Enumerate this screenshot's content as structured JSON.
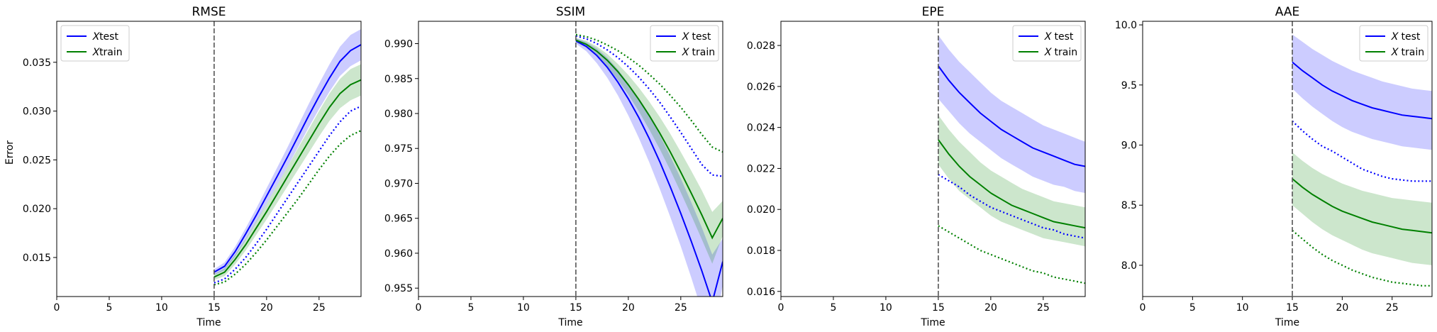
{
  "figure": {
    "ylabel": "Error",
    "xlabel": "Time"
  },
  "colors": {
    "test": "#0000ff",
    "train": "#008000",
    "test_band": "#0000ff",
    "train_band": "#008000",
    "vline": "#555555"
  },
  "chart_data": [
    {
      "type": "line",
      "title": "RMSE",
      "xlabel": "Time",
      "ylabel": "Error",
      "xlim": [
        0,
        29
      ],
      "ylim": [
        0.011,
        0.0392
      ],
      "xticks": [
        0,
        5,
        10,
        15,
        20,
        25
      ],
      "yticks": [
        0.015,
        0.02,
        0.025,
        0.03,
        0.035
      ],
      "ytick_labels": [
        "0.015",
        "0.020",
        "0.025",
        "0.030",
        "0.035"
      ],
      "vline_x": 15,
      "legend": {
        "position": "top-left",
        "entries": [
          "$X$test",
          "$X$train"
        ],
        "labels": [
          "𝑋test",
          "𝑋train"
        ]
      },
      "x": [
        15,
        16,
        17,
        18,
        19,
        20,
        21,
        22,
        23,
        24,
        25,
        26,
        27,
        28,
        29
      ],
      "series": [
        {
          "name": "𝑋test",
          "color_key": "test",
          "style": "solid",
          "values": [
            0.0135,
            0.0141,
            0.0156,
            0.0174,
            0.0193,
            0.0213,
            0.0233,
            0.0253,
            0.0274,
            0.0295,
            0.0315,
            0.0334,
            0.0351,
            0.0362,
            0.0368
          ],
          "lower": [
            0.0132,
            0.0137,
            0.0151,
            0.0168,
            0.0186,
            0.0205,
            0.0224,
            0.0243,
            0.0263,
            0.0283,
            0.0302,
            0.032,
            0.0336,
            0.0346,
            0.0352
          ],
          "upper": [
            0.0138,
            0.0145,
            0.0161,
            0.018,
            0.02,
            0.0221,
            0.0242,
            0.0263,
            0.0285,
            0.0307,
            0.0328,
            0.0348,
            0.0366,
            0.0378,
            0.0384
          ]
        },
        {
          "name": "𝑋train",
          "color_key": "train",
          "style": "solid",
          "values": [
            0.013,
            0.0135,
            0.0148,
            0.0163,
            0.018,
            0.0197,
            0.0215,
            0.0233,
            0.0251,
            0.0269,
            0.0287,
            0.0304,
            0.0318,
            0.0327,
            0.0332
          ],
          "lower": [
            0.0127,
            0.0131,
            0.0143,
            0.0157,
            0.0173,
            0.0189,
            0.0206,
            0.0223,
            0.024,
            0.0257,
            0.0274,
            0.029,
            0.0303,
            0.0311,
            0.0316
          ],
          "upper": [
            0.0133,
            0.0139,
            0.0153,
            0.0169,
            0.0187,
            0.0205,
            0.0224,
            0.0243,
            0.0262,
            0.0281,
            0.03,
            0.0318,
            0.0333,
            0.0343,
            0.0348
          ]
        },
        {
          "name": "",
          "color_key": "test",
          "style": "dotted",
          "values": [
            0.0124,
            0.0128,
            0.0138,
            0.015,
            0.0164,
            0.0179,
            0.0195,
            0.0211,
            0.0227,
            0.0243,
            0.0259,
            0.0275,
            0.0289,
            0.03,
            0.0305
          ]
        },
        {
          "name": "",
          "color_key": "train",
          "style": "dotted",
          "values": [
            0.0122,
            0.0125,
            0.0133,
            0.0143,
            0.0155,
            0.0168,
            0.0182,
            0.0196,
            0.021,
            0.0225,
            0.024,
            0.0254,
            0.0266,
            0.0275,
            0.028
          ]
        }
      ]
    },
    {
      "type": "line",
      "title": "SSIM",
      "xlabel": "Time",
      "ylabel": "",
      "xlim": [
        0,
        29
      ],
      "ylim": [
        0.9538,
        0.9932
      ],
      "xticks": [
        0,
        5,
        10,
        15,
        20,
        25
      ],
      "yticks": [
        0.955,
        0.96,
        0.965,
        0.97,
        0.975,
        0.98,
        0.985,
        0.99
      ],
      "ytick_labels": [
        "0.955",
        "0.960",
        "0.965",
        "0.970",
        "0.975",
        "0.980",
        "0.985",
        "0.990"
      ],
      "vline_x": 15,
      "legend": {
        "position": "top-right",
        "entries": [
          "$X$ test",
          "$X$ train"
        ],
        "labels": [
          "𝑋 test",
          "𝑋 train"
        ]
      },
      "x": [
        15,
        16,
        17,
        18,
        19,
        20,
        21,
        22,
        23,
        24,
        25,
        26,
        27,
        28,
        29
      ],
      "series": [
        {
          "name": "𝑋 test",
          "color_key": "test",
          "style": "solid",
          "values": [
            0.9904,
            0.9896,
            0.9883,
            0.9866,
            0.9845,
            0.9821,
            0.9794,
            0.9764,
            0.9731,
            0.9695,
            0.9657,
            0.9617,
            0.9575,
            0.953,
            0.9588
          ],
          "lower": [
            0.99,
            0.9889,
            0.9872,
            0.9851,
            0.9826,
            0.9797,
            0.9765,
            0.973,
            0.9692,
            0.9652,
            0.961,
            0.9565,
            0.9518,
            0.947,
            0.9555
          ],
          "upper": [
            0.9908,
            0.9902,
            0.9893,
            0.988,
            0.9863,
            0.9843,
            0.9821,
            0.9796,
            0.9769,
            0.9739,
            0.9707,
            0.9673,
            0.9637,
            0.9598,
            0.9621
          ]
        },
        {
          "name": "𝑋 train",
          "color_key": "train",
          "style": "solid",
          "values": [
            0.9905,
            0.9899,
            0.9889,
            0.9876,
            0.986,
            0.9841,
            0.982,
            0.9797,
            0.9772,
            0.9745,
            0.9716,
            0.9686,
            0.9655,
            0.9622,
            0.965
          ],
          "lower": [
            0.9902,
            0.9894,
            0.9882,
            0.9867,
            0.9848,
            0.9827,
            0.9803,
            0.9777,
            0.9749,
            0.9719,
            0.9687,
            0.9654,
            0.962,
            0.9585,
            0.9625
          ],
          "upper": [
            0.9908,
            0.9904,
            0.9896,
            0.9885,
            0.9871,
            0.9855,
            0.9837,
            0.9817,
            0.9795,
            0.9771,
            0.9745,
            0.9718,
            0.969,
            0.9659,
            0.9675
          ]
        },
        {
          "name": "",
          "color_key": "test",
          "style": "dotted",
          "values": [
            0.9911,
            0.9907,
            0.99,
            0.9891,
            0.988,
            0.9867,
            0.9852,
            0.9835,
            0.9816,
            0.9795,
            0.9773,
            0.975,
            0.9727,
            0.9712,
            0.971
          ]
        },
        {
          "name": "",
          "color_key": "train",
          "style": "dotted",
          "values": [
            0.9913,
            0.991,
            0.9905,
            0.9898,
            0.989,
            0.988,
            0.9869,
            0.9856,
            0.9842,
            0.9826,
            0.9809,
            0.979,
            0.977,
            0.9752,
            0.9745
          ]
        }
      ]
    },
    {
      "type": "line",
      "title": "EPE",
      "xlabel": "Time",
      "ylabel": "",
      "xlim": [
        0,
        29
      ],
      "ylim": [
        0.01575,
        0.02918
      ],
      "xticks": [
        0,
        5,
        10,
        15,
        20,
        25
      ],
      "yticks": [
        0.016,
        0.018,
        0.02,
        0.022,
        0.024,
        0.026,
        0.028
      ],
      "ytick_labels": [
        "0.016",
        "0.018",
        "0.020",
        "0.022",
        "0.024",
        "0.026",
        "0.028"
      ],
      "vline_x": 15,
      "legend": {
        "position": "top-right",
        "entries": [
          "$X$ test",
          "$X$ train"
        ],
        "labels": [
          "𝑋 test",
          "𝑋 train"
        ]
      },
      "x": [
        15,
        16,
        17,
        18,
        19,
        20,
        21,
        22,
        23,
        24,
        25,
        26,
        27,
        28,
        29
      ],
      "series": [
        {
          "name": "𝑋 test",
          "color_key": "test",
          "style": "solid",
          "values": [
            0.027,
            0.0263,
            0.0257,
            0.0252,
            0.0247,
            0.0243,
            0.0239,
            0.0236,
            0.0233,
            0.023,
            0.0228,
            0.0226,
            0.0224,
            0.0222,
            0.0221
          ],
          "lower": [
            0.0254,
            0.0248,
            0.0242,
            0.0237,
            0.0233,
            0.0229,
            0.0225,
            0.0222,
            0.0219,
            0.0216,
            0.0214,
            0.0212,
            0.0211,
            0.0209,
            0.0208
          ],
          "upper": [
            0.0285,
            0.0278,
            0.0272,
            0.0267,
            0.0262,
            0.0257,
            0.0253,
            0.025,
            0.0247,
            0.0244,
            0.0241,
            0.0239,
            0.0237,
            0.0235,
            0.0233
          ]
        },
        {
          "name": "𝑋 train",
          "color_key": "train",
          "style": "solid",
          "values": [
            0.0234,
            0.0227,
            0.0221,
            0.0216,
            0.0212,
            0.0208,
            0.0205,
            0.0202,
            0.02,
            0.0198,
            0.0196,
            0.0194,
            0.0193,
            0.0192,
            0.0191
          ],
          "lower": [
            0.0222,
            0.0215,
            0.0209,
            0.0205,
            0.0201,
            0.0197,
            0.0194,
            0.0192,
            0.019,
            0.0188,
            0.0186,
            0.0185,
            0.0184,
            0.0183,
            0.0182
          ],
          "upper": [
            0.0246,
            0.0239,
            0.0233,
            0.0228,
            0.0223,
            0.0219,
            0.0216,
            0.0213,
            0.021,
            0.0208,
            0.0206,
            0.0204,
            0.0203,
            0.0202,
            0.0201
          ]
        },
        {
          "name": "",
          "color_key": "test",
          "style": "dotted",
          "values": [
            0.0217,
            0.0214,
            0.0211,
            0.0207,
            0.0204,
            0.0201,
            0.0199,
            0.0197,
            0.0195,
            0.0193,
            0.0191,
            0.019,
            0.0188,
            0.0187,
            0.0186
          ]
        },
        {
          "name": "",
          "color_key": "train",
          "style": "dotted",
          "values": [
            0.0192,
            0.0189,
            0.0186,
            0.0183,
            0.018,
            0.0178,
            0.0176,
            0.0174,
            0.0172,
            0.017,
            0.0169,
            0.0167,
            0.0166,
            0.0165,
            0.0164
          ]
        }
      ]
    },
    {
      "type": "line",
      "title": "AAE",
      "xlabel": "Time",
      "ylabel": "",
      "xlim": [
        0,
        29
      ],
      "ylim": [
        7.74,
        10.03
      ],
      "xticks": [
        0,
        5,
        10,
        15,
        20,
        25
      ],
      "yticks": [
        8.0,
        8.5,
        9.0,
        9.5,
        10.0
      ],
      "ytick_labels": [
        "8.0",
        "8.5",
        "9.0",
        "9.5",
        "10.0"
      ],
      "vline_x": 15,
      "legend": {
        "position": "top-right",
        "entries": [
          "$X$ test",
          "$X$ train"
        ],
        "labels": [
          "𝑋 test",
          "𝑋 train"
        ]
      },
      "x": [
        15,
        16,
        17,
        18,
        19,
        20,
        21,
        22,
        23,
        24,
        25,
        26,
        27,
        28,
        29
      ],
      "series": [
        {
          "name": "𝑋 test",
          "color_key": "test",
          "style": "solid",
          "values": [
            9.69,
            9.62,
            9.56,
            9.5,
            9.45,
            9.41,
            9.37,
            9.34,
            9.31,
            9.29,
            9.27,
            9.25,
            9.24,
            9.23,
            9.22
          ],
          "lower": [
            9.47,
            9.39,
            9.32,
            9.26,
            9.2,
            9.15,
            9.11,
            9.08,
            9.05,
            9.03,
            9.01,
            8.99,
            8.98,
            8.97,
            8.96
          ],
          "upper": [
            9.92,
            9.86,
            9.8,
            9.75,
            9.7,
            9.66,
            9.62,
            9.59,
            9.56,
            9.53,
            9.51,
            9.49,
            9.47,
            9.46,
            9.45
          ]
        },
        {
          "name": "𝑋 train",
          "color_key": "train",
          "style": "solid",
          "values": [
            8.72,
            8.65,
            8.59,
            8.54,
            8.49,
            8.45,
            8.42,
            8.39,
            8.36,
            8.34,
            8.32,
            8.3,
            8.29,
            8.28,
            8.27
          ],
          "lower": [
            8.5,
            8.43,
            8.36,
            8.3,
            8.25,
            8.21,
            8.17,
            8.13,
            8.1,
            8.08,
            8.06,
            8.04,
            8.02,
            8.01,
            8.0
          ],
          "upper": [
            8.94,
            8.87,
            8.81,
            8.76,
            8.72,
            8.68,
            8.65,
            8.62,
            8.6,
            8.58,
            8.56,
            8.55,
            8.54,
            8.53,
            8.52
          ]
        },
        {
          "name": "",
          "color_key": "test",
          "style": "dotted",
          "values": [
            9.2,
            9.12,
            9.05,
            8.99,
            8.95,
            8.9,
            8.85,
            8.8,
            8.77,
            8.74,
            8.72,
            8.71,
            8.7,
            8.7,
            8.7
          ]
        },
        {
          "name": "",
          "color_key": "train",
          "style": "dotted",
          "values": [
            8.29,
            8.22,
            8.15,
            8.09,
            8.04,
            8.0,
            7.96,
            7.93,
            7.9,
            7.88,
            7.86,
            7.85,
            7.84,
            7.83,
            7.83
          ]
        }
      ]
    }
  ]
}
